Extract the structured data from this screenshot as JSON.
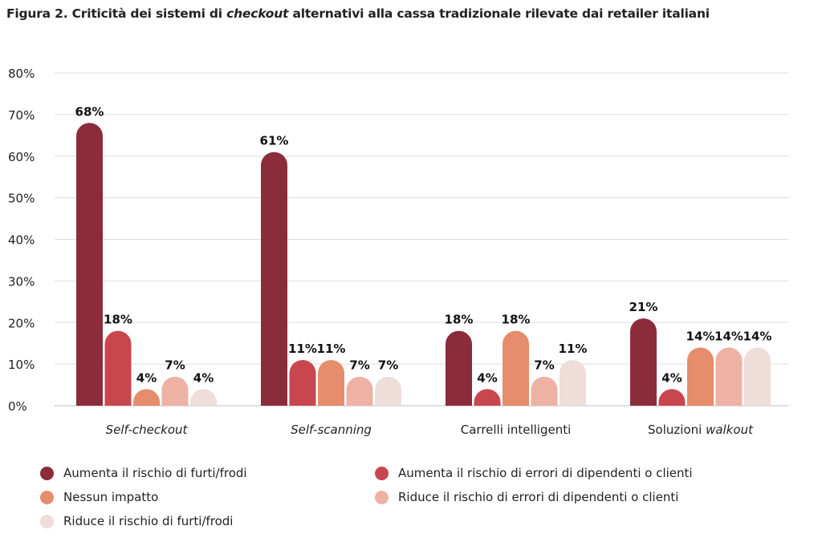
{
  "chart_data": {
    "type": "bar",
    "title_parts": [
      {
        "text": "Figura 2. Criticità dei sistemi di ",
        "italic": false
      },
      {
        "text": "checkout",
        "italic": true
      },
      {
        "text": " alternativi alla cassa tradizionale rilevate dai retailer italiani",
        "italic": false
      }
    ],
    "categories": [
      [
        {
          "text": "Self-checkout",
          "italic": true
        }
      ],
      [
        {
          "text": "Self-scanning",
          "italic": true
        }
      ],
      [
        {
          "text": "Carrelli intelligenti",
          "italic": false
        }
      ],
      [
        {
          "text": "Soluzioni ",
          "italic": false
        },
        {
          "text": "walkout",
          "italic": true
        }
      ]
    ],
    "series": [
      {
        "name": "Aumenta il rischio di furti/frodi",
        "color": "#8B2C3B",
        "values": [
          68,
          61,
          18,
          21
        ]
      },
      {
        "name": "Aumenta il rischio di errori di dipendenti o clienti",
        "color": "#C8474F",
        "values": [
          18,
          11,
          4,
          4
        ]
      },
      {
        "name": "Nessun impatto",
        "color": "#E58D6C",
        "values": [
          4,
          11,
          18,
          14
        ]
      },
      {
        "name": "Riduce il rischio di errori di dipendenti o clienti",
        "color": "#EDB2A3",
        "values": [
          7,
          7,
          7,
          14
        ]
      },
      {
        "name": "Riduce il rischio di furti/frodi",
        "color": "#EEDDD9",
        "values": [
          4,
          7,
          11,
          14
        ]
      }
    ],
    "yticks": [
      "0%",
      "10%",
      "20%",
      "30%",
      "40%",
      "50%",
      "60%",
      "70%",
      "80%"
    ],
    "ylim": [
      0,
      80
    ],
    "value_suffix": "%",
    "grid": true,
    "legend_position": "bottom"
  }
}
